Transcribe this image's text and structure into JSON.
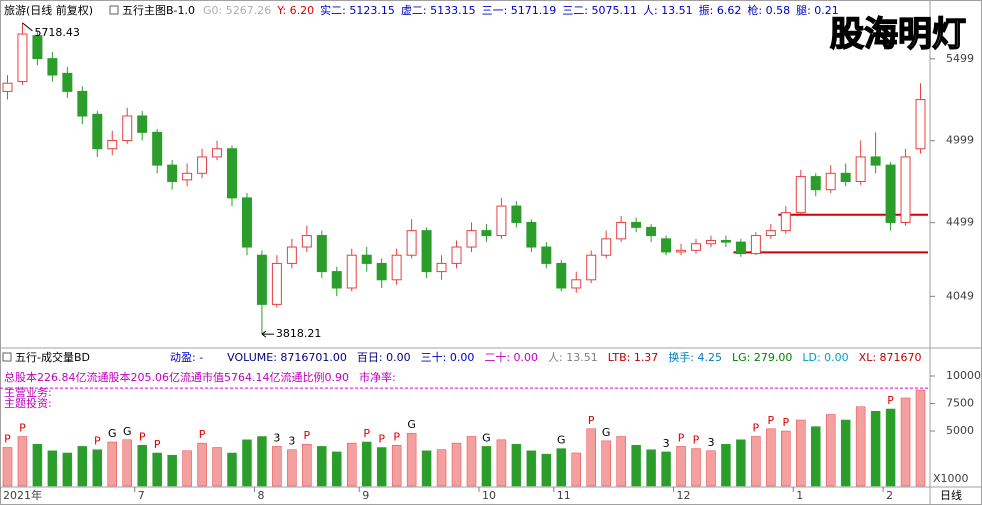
{
  "chart_data": {
    "type": "candlestick",
    "title": "旅游(日线 前复权)",
    "indicator": "五行主图B-1.0",
    "watermark": "股海明灯",
    "stats": [
      {
        "label": "G0: 5267.26",
        "color": "#b0b0b0"
      },
      {
        "label": "Y: 6.20",
        "color": "#e00000"
      },
      {
        "label": "实二: 5123.15",
        "color": "#0000c0"
      },
      {
        "label": "虚二: 5133.15",
        "color": "#0000c0"
      },
      {
        "label": "三一: 5171.19",
        "color": "#0000c0"
      },
      {
        "label": "三二: 5075.11",
        "color": "#0000c0"
      },
      {
        "label": "人: 13.51",
        "color": "#0000c0"
      },
      {
        "label": "振: 6.62",
        "color": "#0000c0"
      },
      {
        "label": "枪: 0.58",
        "color": "#0000c0"
      },
      {
        "label": "腿: 0.21",
        "color": "#0000c0"
      }
    ],
    "categories": [
      "2021年",
      null,
      null,
      null,
      null,
      null,
      null,
      null,
      null,
      "7",
      null,
      null,
      null,
      null,
      null,
      null,
      null,
      "8",
      null,
      null,
      null,
      null,
      null,
      null,
      "9",
      null,
      null,
      null,
      null,
      null,
      null,
      null,
      "10",
      null,
      null,
      null,
      null,
      "11",
      null,
      null,
      null,
      null,
      null,
      null,
      null,
      "12",
      null,
      null,
      null,
      null,
      null,
      null,
      null,
      "1",
      null,
      null,
      null,
      null,
      null,
      "2",
      null,
      null
    ],
    "open": [
      5300,
      5360,
      5640,
      5500,
      5410,
      5300,
      5160,
      4950,
      5000,
      5150,
      5050,
      4850,
      4760,
      4800,
      4900,
      4950,
      4650,
      4300,
      4000,
      4250,
      4350,
      4420,
      4200,
      4100,
      4300,
      4250,
      4150,
      4300,
      4450,
      4200,
      4250,
      4350,
      4450,
      4420,
      4600,
      4500,
      4350,
      4250,
      4100,
      4150,
      4300,
      4400,
      4500,
      4470,
      4400,
      4320,
      4330,
      4370,
      4390,
      4380,
      4310,
      4420,
      4450,
      4560,
      4780,
      4700,
      4800,
      4750,
      4900,
      4850,
      4500,
      4950
    ],
    "high": [
      5400,
      5718.43,
      5670,
      5540,
      5450,
      5330,
      5180,
      5060,
      5200,
      5180,
      5070,
      4880,
      4860,
      4950,
      5000,
      4970,
      4680,
      4330,
      4300,
      4400,
      4480,
      4450,
      4230,
      4340,
      4350,
      4280,
      4340,
      4520,
      4470,
      4300,
      4390,
      4500,
      4490,
      4650,
      4630,
      4520,
      4380,
      4270,
      4200,
      4330,
      4450,
      4540,
      4530,
      4490,
      4420,
      4370,
      4400,
      4420,
      4420,
      4400,
      4440,
      4490,
      4600,
      4820,
      4800,
      4850,
      4860,
      5000,
      5050,
      4870,
      4950,
      5350
    ],
    "low": [
      5250,
      5340,
      5460,
      5360,
      5260,
      5100,
      4900,
      4910,
      4980,
      5000,
      4800,
      4700,
      4720,
      4770,
      4880,
      4600,
      4300,
      3818.21,
      3980,
      4220,
      4320,
      4160,
      4050,
      4080,
      4200,
      4100,
      4120,
      4280,
      4160,
      4150,
      4220,
      4320,
      4380,
      4400,
      4470,
      4320,
      4220,
      4080,
      4070,
      4130,
      4280,
      4380,
      4440,
      4380,
      4300,
      4300,
      4310,
      4350,
      4350,
      4290,
      4300,
      4400,
      4430,
      4550,
      4660,
      4680,
      4720,
      4730,
      4800,
      4450,
      4480,
      4920
    ],
    "close": [
      5350,
      5650,
      5500,
      5400,
      5300,
      5150,
      4950,
      5000,
      5150,
      5050,
      4850,
      4750,
      4800,
      4900,
      4950,
      4650,
      4350,
      4000,
      4250,
      4350,
      4420,
      4200,
      4100,
      4300,
      4250,
      4150,
      4300,
      4450,
      4200,
      4250,
      4350,
      4450,
      4420,
      4600,
      4500,
      4350,
      4250,
      4100,
      4150,
      4300,
      4400,
      4500,
      4470,
      4420,
      4320,
      4330,
      4370,
      4390,
      4380,
      4310,
      4420,
      4450,
      4560,
      4780,
      4700,
      4800,
      4750,
      4900,
      4850,
      4500,
      4900,
      5250
    ],
    "up_color": "#e84040",
    "down_color": "#2a9d2a",
    "high_label": {
      "value": 5718.43,
      "label": "5718.43"
    },
    "low_label": {
      "value": 3818.21,
      "label": "3818.21"
    },
    "levels": [
      {
        "value": 4547,
        "start_index": 52,
        "color": "#d00000"
      },
      {
        "value": 4317,
        "start_index": 49,
        "color": "#d00000"
      }
    ],
    "ylim": [
      3752,
      5748
    ],
    "yticks": [
      4049,
      4499,
      4999,
      5499
    ],
    "period": "日线",
    "volume_pane": {
      "title": "五行-成交量BD",
      "stats": [
        {
          "label": "动盈: -",
          "color": "#0000c0"
        },
        {
          "label": "VOLUME: 8716701.00",
          "color": "#000080"
        },
        {
          "label": "百日: 0.00",
          "color": "#000080"
        },
        {
          "label": "三十: 0.00",
          "color": "#0000c0"
        },
        {
          "label": "二十: 0.00",
          "color": "#c000c0"
        },
        {
          "label": "人: 13.51",
          "color": "#808080"
        },
        {
          "label": "LTB: 1.37",
          "color": "#c00000"
        },
        {
          "label": "换手: 4.25",
          "color": "#0080c0"
        },
        {
          "label": "LG: 279.00",
          "color": "#008000"
        },
        {
          "label": "LD: 0.00",
          "color": "#00a0c0"
        },
        {
          "label": "XL: 871670",
          "color": "#c00000"
        }
      ],
      "info": [
        "总股本226.84亿流通股本205.06亿流通市值5764.14亿流通比例0.90",
        "市净率:",
        "主营业务:",
        "主题投资:"
      ],
      "values": [
        3500,
        4500,
        3800,
        3200,
        3000,
        3600,
        3300,
        4000,
        4200,
        3700,
        3000,
        2800,
        3200,
        3900,
        3500,
        3000,
        4200,
        4500,
        3600,
        3300,
        3800,
        3600,
        3100,
        3900,
        4000,
        3500,
        3700,
        4800,
        3200,
        3300,
        3900,
        4500,
        3600,
        4200,
        3800,
        3200,
        2900,
        3400,
        3000,
        5200,
        4100,
        4500,
        3700,
        3300,
        3100,
        3600,
        3400,
        3200,
        3800,
        4200,
        4500,
        5200,
        5000,
        6000,
        5400,
        6500,
        6000,
        7200,
        6800,
        7000,
        8000,
        8716.701
      ],
      "ref_line": {
        "value": 8900,
        "color": "#e000e0"
      },
      "signals": [
        {
          "index": 0,
          "label": "P"
        },
        {
          "index": 1,
          "label": "P"
        },
        {
          "index": 6,
          "label": "P"
        },
        {
          "index": 7,
          "label": "G"
        },
        {
          "index": 8,
          "label": "G"
        },
        {
          "index": 9,
          "label": "P"
        },
        {
          "index": 10,
          "label": "P"
        },
        {
          "index": 13,
          "label": "P"
        },
        {
          "index": 18,
          "label": "3"
        },
        {
          "index": 19,
          "label": "3"
        },
        {
          "index": 20,
          "label": "P"
        },
        {
          "index": 24,
          "label": "P"
        },
        {
          "index": 25,
          "label": "P"
        },
        {
          "index": 26,
          "label": "P"
        },
        {
          "index": 27,
          "label": "G"
        },
        {
          "index": 32,
          "label": "G"
        },
        {
          "index": 37,
          "label": "G"
        },
        {
          "index": 39,
          "label": "P"
        },
        {
          "index": 40,
          "label": "G"
        },
        {
          "index": 44,
          "label": "3"
        },
        {
          "index": 45,
          "label": "P"
        },
        {
          "index": 46,
          "label": "P"
        },
        {
          "index": 47,
          "label": "3"
        },
        {
          "index": 50,
          "label": "P"
        },
        {
          "index": 51,
          "label": "P"
        },
        {
          "index": 52,
          "label": "P"
        },
        {
          "index": 59,
          "label": "P"
        }
      ],
      "unit": "X1000",
      "ylim": [
        0,
        11000
      ],
      "yticks": [
        5000,
        7500,
        10000
      ]
    }
  }
}
